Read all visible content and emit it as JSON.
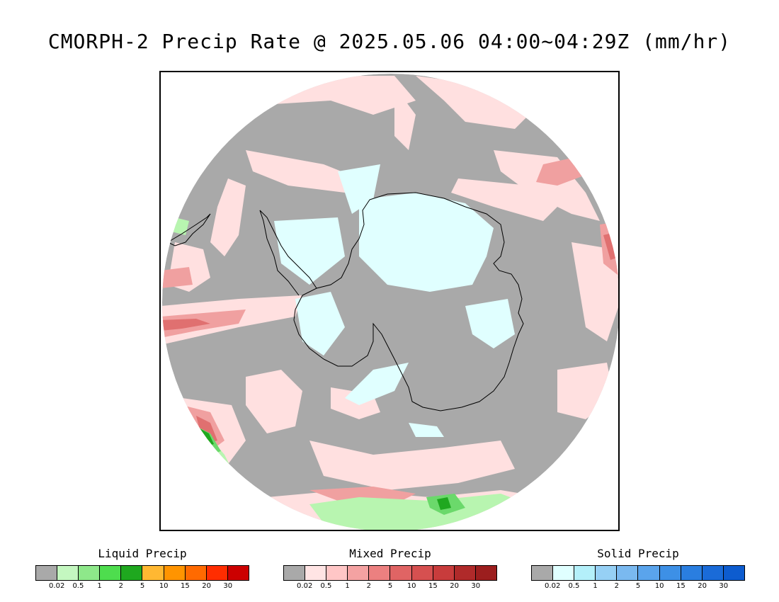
{
  "title": "CMORPH-2 Precip Rate @ 2025.05.06 04:00~04:29Z (mm/hr)",
  "map": {
    "projection": "south-polar-stereographic",
    "background_color": "#a9a9a9",
    "colors": {
      "no_precip": "#a9a9a9",
      "mixed_light": "#ffe0e0",
      "mixed_mid": "#f0a0a0",
      "mixed_heavy": "#e07070",
      "solid_light": "#e0ffff",
      "liquid_light": "#b8f5b0",
      "liquid_mid": "#6bd96b",
      "liquid_heavy": "#1fa81f",
      "coastline": "#000000"
    }
  },
  "legends": [
    {
      "title": "Liquid Precip",
      "colors": [
        "#a9a9a9",
        "#c4f7c0",
        "#8ee88a",
        "#4edd4e",
        "#1fa81f",
        "#ffb832",
        "#ff9400",
        "#ff6a00",
        "#ff2d00",
        "#cc0000"
      ],
      "ticks": [
        "0.02",
        "0.5",
        "1",
        "2",
        "5",
        "10",
        "15",
        "20",
        "30"
      ]
    },
    {
      "title": "Mixed Precip",
      "colors": [
        "#a9a9a9",
        "#ffe4e4",
        "#ffc6c6",
        "#f4a2a2",
        "#ec8080",
        "#e06464",
        "#d65050",
        "#c83c3c",
        "#b02a2a",
        "#9c1e1e"
      ],
      "ticks": [
        "0.02",
        "0.5",
        "1",
        "2",
        "5",
        "10",
        "15",
        "20",
        "30"
      ]
    },
    {
      "title": "Solid Precip",
      "colors": [
        "#a9a9a9",
        "#e0ffff",
        "#b4f0fa",
        "#96d0f5",
        "#7ab9f0",
        "#5aa4ec",
        "#3d90e6",
        "#2a7ee0",
        "#1a6bd8",
        "#0d5ccf"
      ],
      "ticks": [
        "0.02",
        "0.5",
        "1",
        "2",
        "5",
        "10",
        "15",
        "20",
        "30"
      ]
    }
  ]
}
